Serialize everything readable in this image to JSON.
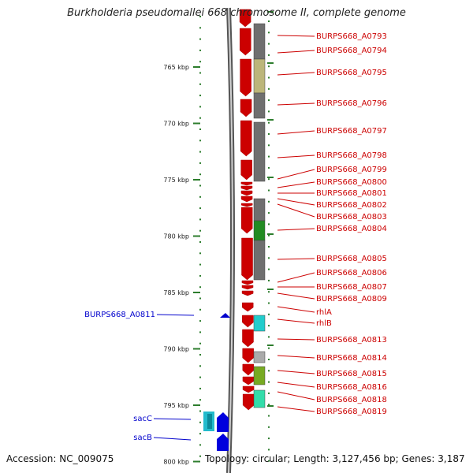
{
  "title": "Burkholderia pseudomallei 668 chromosome II, complete genome",
  "accession": "Accession: NC_009075",
  "topology": "Topology: circular; Length: 3,127,456 bp; Genes: 3,187",
  "colors": {
    "gene_right": "#cc0000",
    "gene_left": "#0000cc",
    "backbone": "#808080",
    "scale": "#2d7d2d"
  },
  "scale": {
    "ticks": [
      {
        "label": "765 kbp",
        "kbp": 765
      },
      {
        "label": "770 kbp",
        "kbp": 770
      },
      {
        "label": "775 kbp",
        "kbp": 775
      },
      {
        "label": "780 kbp",
        "kbp": 780
      },
      {
        "label": "785 kbp",
        "kbp": 785
      },
      {
        "label": "790 kbp",
        "kbp": 790
      },
      {
        "label": "795 kbp",
        "kbp": 795
      },
      {
        "label": "800 kbp",
        "kbp": 800
      }
    ]
  },
  "right_labels": [
    "BURPS668_A0793",
    "BURPS668_A0794",
    "BURPS668_A0795",
    "BURPS668_A0796",
    "BURPS668_A0797",
    "BURPS668_A0798",
    "BURPS668_A0799",
    "BURPS668_A0800",
    "BURPS668_A0801",
    "BURPS668_A0802",
    "BURPS668_A0803",
    "BURPS668_A0804",
    "BURPS668_A0805",
    "BURPS668_A0806",
    "BURPS668_A0807",
    "BURPS668_A0809",
    "rhlA",
    "rhlB",
    "BURPS668_A0813",
    "BURPS668_A0814",
    "BURPS668_A0815",
    "BURPS668_A0816",
    "BURPS668_A0818",
    "BURPS668_A0819"
  ],
  "left_labels": [
    "BURPS668_A0811",
    "sacC",
    "sacB"
  ]
}
